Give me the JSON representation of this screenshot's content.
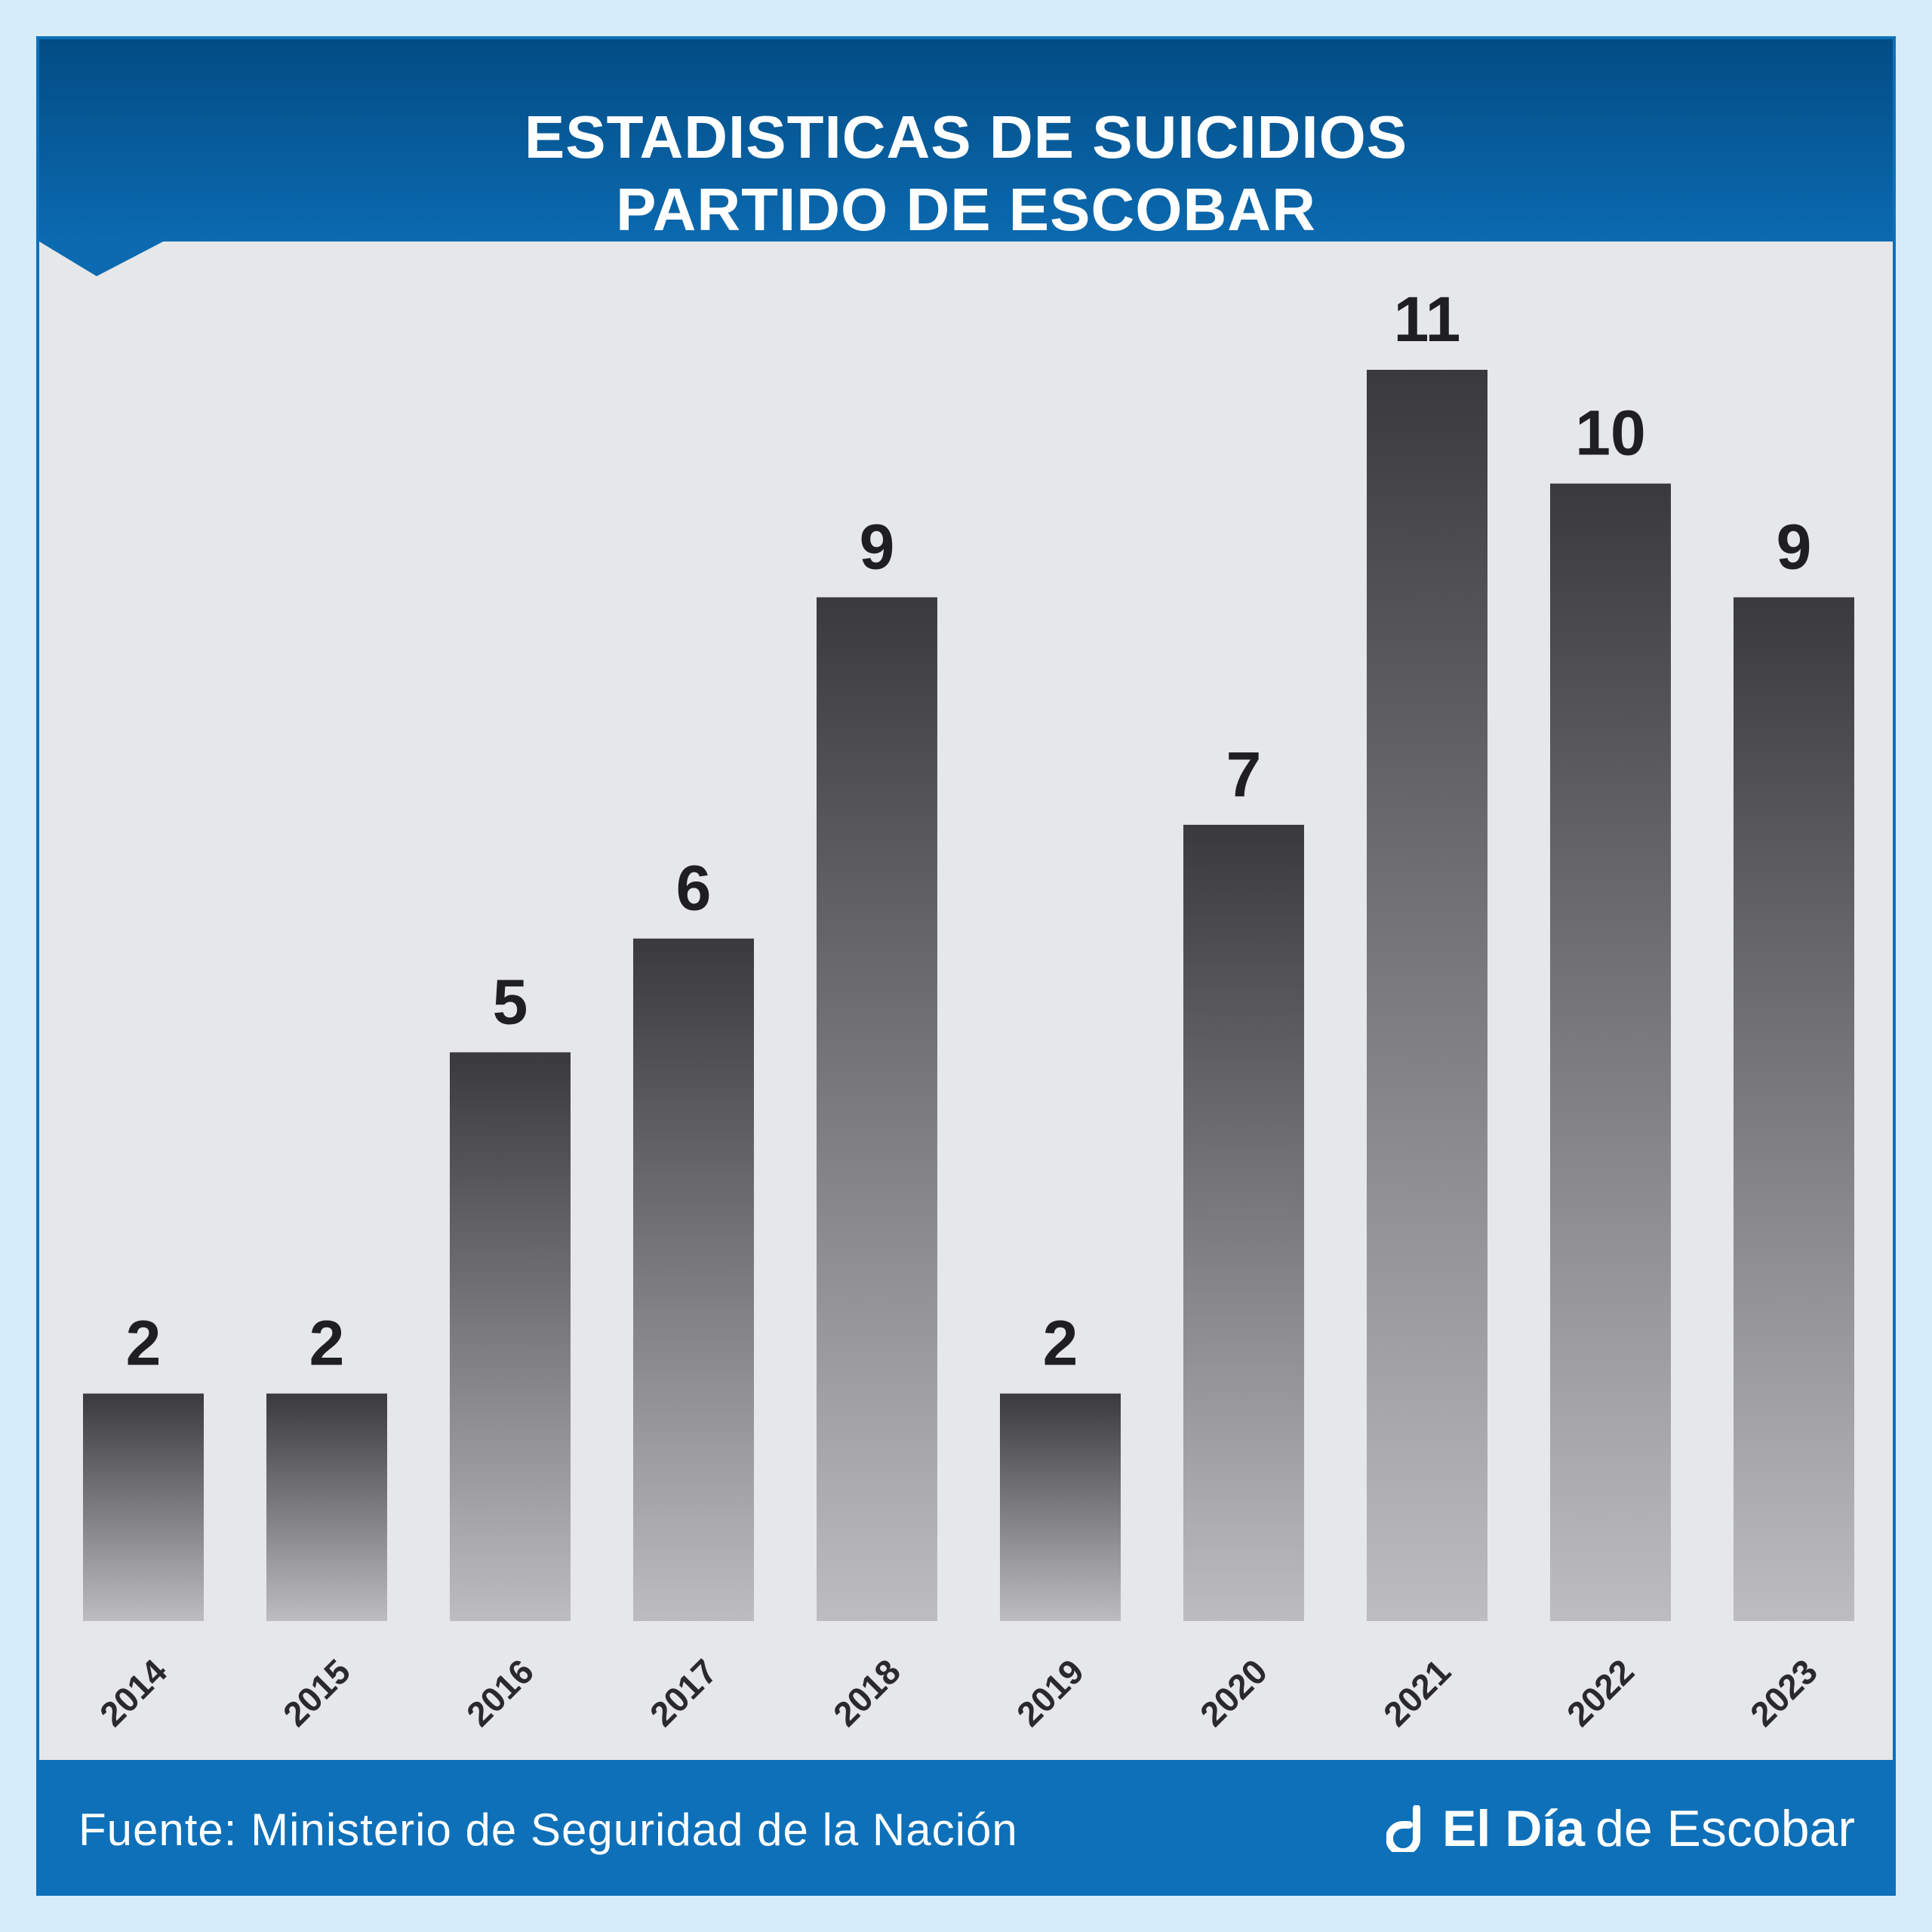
{
  "header": {
    "title_line1": "ESTADISTICAS DE SUICIDIOS",
    "title_line2": "PARTIDO DE ESCOBAR"
  },
  "footer": {
    "source": "Fuente: Ministerio de Seguridad de la Nación",
    "brand_bold": "El Día",
    "brand_regular": "de Escobar",
    "logo_icon": "eldia-logo-icon"
  },
  "colors": {
    "background": "#d6ecf8",
    "header_top": "#024c84",
    "header_bottom": "#0b6ab0",
    "footer": "#0e70b8",
    "panel": "#e6e7e9",
    "bar_top": "#3a3a3c",
    "bar_bottom": "#bdbdbf"
  },
  "chart_data": {
    "type": "bar",
    "categories": [
      "2014",
      "2015",
      "2016",
      "2017",
      "2018",
      "2019",
      "2020",
      "2021",
      "2022",
      "2023"
    ],
    "values": [
      2,
      2,
      5,
      6,
      9,
      2,
      7,
      11,
      10,
      9
    ],
    "title": "ESTADISTICAS DE SUICIDIOS PARTIDO DE ESCOBAR",
    "xlabel": "",
    "ylabel": "",
    "ylim": [
      0,
      11
    ],
    "grid": false,
    "legend": "none",
    "data_labels": true,
    "tick_label_rotation_deg": -45
  }
}
